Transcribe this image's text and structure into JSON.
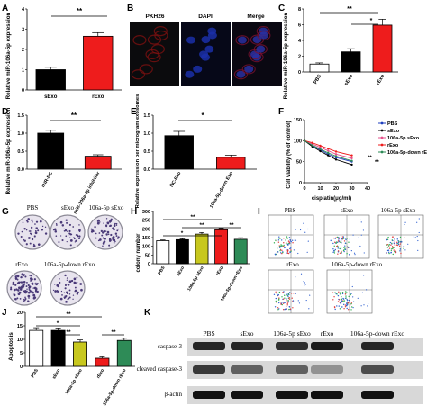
{
  "panel_letters": [
    "A",
    "B",
    "C",
    "D",
    "E",
    "F",
    "G",
    "H",
    "I",
    "J",
    "K"
  ],
  "colors": {
    "red": "#ee1c1c",
    "black": "#000000",
    "white": "#ffffff",
    "olive": "#c8c81e",
    "green": "#2e8b57",
    "pink": "#e6508c",
    "blue": "#1f3fbf",
    "purple": "#7a1f7a"
  },
  "panel_A": {
    "sig": "**",
    "chart_data": {
      "type": "bar",
      "categories": [
        "sExo",
        "rExo"
      ],
      "values": [
        1.0,
        2.65
      ],
      "errors": [
        0.12,
        0.18
      ],
      "ylabel": "Relative miR-106a-5p expression",
      "ylim": [
        0,
        4
      ],
      "yticks": [
        "0",
        "1",
        "2",
        "3",
        "4"
      ]
    }
  },
  "panel_B": {
    "labels": [
      "PKH26",
      "DAPI",
      "Merge"
    ]
  },
  "panel_C": {
    "sig": [
      "**",
      "*"
    ],
    "chart_data": {
      "type": "bar",
      "categories": [
        "PBS",
        "sExo",
        "rExo"
      ],
      "values": [
        1.0,
        2.55,
        5.95
      ],
      "errors": [
        0.15,
        0.4,
        0.75
      ],
      "ylabel": "Relative miR-106a-5p expression",
      "ylim": [
        0,
        8
      ],
      "yticks": [
        "0",
        "2",
        "4",
        "6",
        "8"
      ]
    }
  },
  "panel_D": {
    "sig": "**",
    "chart_data": {
      "type": "bar",
      "categories": [
        "miR-NC",
        "miR-106a-5p inhibitor"
      ],
      "values": [
        1.0,
        0.36
      ],
      "errors": [
        0.08,
        0.04
      ],
      "ylabel": "Relative miR-106a-5p expression",
      "ylim": [
        0,
        1.5
      ],
      "yticks": [
        "0.0",
        "0.5",
        "1.0",
        "1.5"
      ]
    }
  },
  "panel_E": {
    "sig": "*",
    "chart_data": {
      "type": "bar",
      "categories": [
        "NC-Exo",
        "106a-5p-down Exo"
      ],
      "values": [
        0.93,
        0.33
      ],
      "errors": [
        0.12,
        0.06
      ],
      "ylabel": "Relative expression per microgram exosomes",
      "ylim": [
        0,
        1.5
      ],
      "yticks": [
        "0.0",
        "0.5",
        "1.0",
        "1.5"
      ]
    }
  },
  "panel_F": {
    "sig": [
      "**",
      "**"
    ],
    "chart_data": {
      "type": "line",
      "x": [
        0,
        5,
        10,
        15,
        20,
        30
      ],
      "xticks": [
        "0",
        "10",
        "20",
        "30",
        "40"
      ],
      "yticks": [
        "0",
        "50",
        "100",
        "150"
      ],
      "xlim": [
        0,
        40
      ],
      "ylim": [
        0,
        150
      ],
      "xlabel": "cisplatin(μg/ml)",
      "ylabel": "Cell viability (% of control)",
      "series": [
        {
          "name": "PBS",
          "values": [
            100,
            88,
            78,
            68,
            60,
            50
          ]
        },
        {
          "name": "sExo",
          "values": [
            100,
            86,
            75,
            65,
            55,
            43
          ]
        },
        {
          "name": "106a-5p sExo",
          "values": [
            100,
            92,
            84,
            76,
            68,
            58
          ]
        },
        {
          "name": "rExo",
          "values": [
            100,
            95,
            88,
            81,
            74,
            65
          ]
        },
        {
          "name": "106a-5p-down rExo",
          "values": [
            100,
            89,
            80,
            71,
            63,
            52
          ]
        }
      ]
    }
  },
  "panel_G": {
    "labels": [
      "PBS",
      "sExo",
      "106a-5p sExo",
      "rExo",
      "106a-5p-down rExo"
    ]
  },
  "panel_H": {
    "sig": [
      "**",
      "**",
      "*",
      "**",
      "**"
    ],
    "chart_data": {
      "type": "bar",
      "categories": [
        "PBS",
        "sExo",
        "106a-5p sExo",
        "rExo",
        "106a-5p-down rExo"
      ],
      "values": [
        132,
        138,
        170,
        195,
        140
      ],
      "errors": [
        4,
        5,
        9,
        8,
        9
      ],
      "ylabel": "colony number",
      "ylim": [
        0,
        300
      ],
      "yticks": [
        "0",
        "50",
        "100",
        "150",
        "200",
        "250",
        "300"
      ]
    }
  },
  "panel_I": {
    "labels": [
      "PBS",
      "sExo",
      "106a-5p sExo",
      "rExo",
      "106a-5p-down rExo"
    ]
  },
  "panel_J": {
    "sig": [
      "**",
      "*",
      "**",
      "**"
    ],
    "chart_data": {
      "type": "bar",
      "categories": [
        "PBS",
        "sExo",
        "106a-5p sExo",
        "rExo",
        "106a-5p-down rExo"
      ],
      "values": [
        13.3,
        13.3,
        9.0,
        3.0,
        9.6
      ],
      "errors": [
        1.0,
        0.9,
        0.8,
        0.5,
        0.8
      ],
      "ylabel": "Apoptosis",
      "ylim": [
        0,
        20
      ],
      "yticks": [
        "0",
        "5",
        "10",
        "15",
        "20"
      ]
    }
  },
  "panel_K": {
    "columns": [
      "PBS",
      "sExo",
      "106a-5p sExo",
      "rExo",
      "106a-5p-down rExo"
    ],
    "rows": [
      "caspase-3",
      "cleaved caspase-3",
      "β-actin"
    ]
  }
}
